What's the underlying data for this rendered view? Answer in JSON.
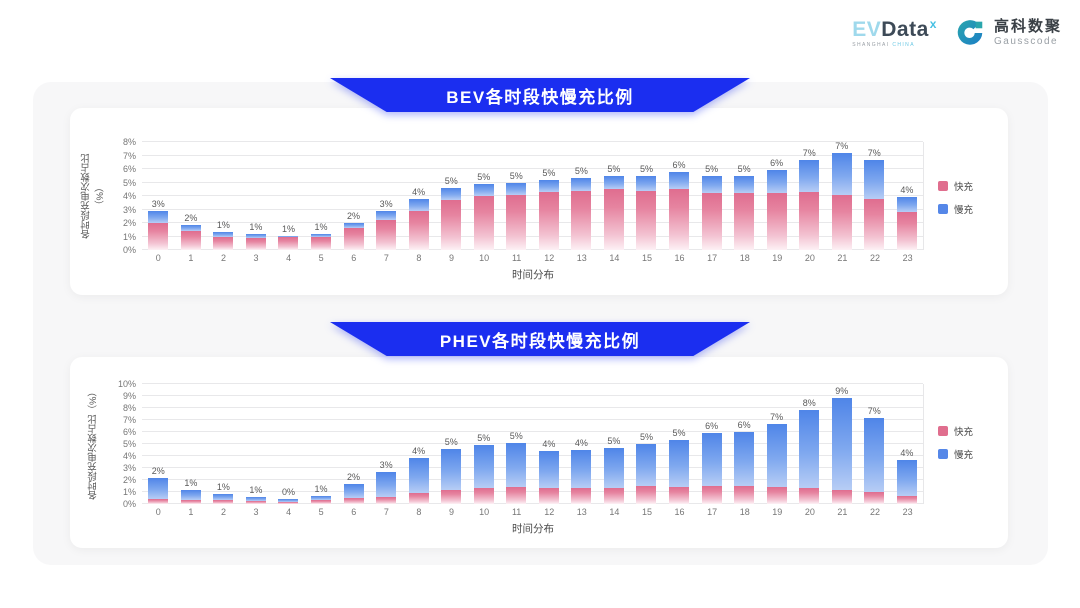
{
  "header": {
    "evdata": {
      "ev": "EV",
      "data": "Data",
      "sup": "x",
      "sub1": "SHANGHAI",
      "sub2": "CHINA"
    },
    "gausscode": {
      "cn": "高科数聚",
      "en": "Gausscode"
    }
  },
  "colors": {
    "banner_blue": "#1B2EF0",
    "fast_pink": "#E06E8E",
    "slow_blue": "#5587E8",
    "panel_bg": "#F7F7F8",
    "card_bg": "#FFFFFF"
  },
  "chart_data": [
    {
      "type": "bar",
      "stacked": true,
      "title": "BEV各时段快慢充比例",
      "xlabel": "时间分布",
      "ylabel": "各时段充电次数占比（%）",
      "ylim": [
        0,
        8
      ],
      "ytick_step": 1,
      "ytick_suffix": "%",
      "grid": true,
      "legend_position": "right",
      "categories": [
        "0",
        "1",
        "2",
        "3",
        "4",
        "5",
        "6",
        "7",
        "8",
        "9",
        "10",
        "11",
        "12",
        "13",
        "14",
        "15",
        "16",
        "17",
        "18",
        "19",
        "20",
        "21",
        "22",
        "23"
      ],
      "series": [
        {
          "name": "快充",
          "color": "#E06E8E",
          "values": [
            2.0,
            1.4,
            1.0,
            0.9,
            0.95,
            1.0,
            1.6,
            2.2,
            2.9,
            3.7,
            4.0,
            4.1,
            4.3,
            4.4,
            4.5,
            4.4,
            4.5,
            4.2,
            4.2,
            4.2,
            4.3,
            4.1,
            3.8,
            2.8
          ]
        },
        {
          "name": "慢充",
          "color": "#5587E8",
          "values": [
            0.9,
            0.45,
            0.3,
            0.25,
            0.1,
            0.2,
            0.4,
            0.7,
            0.9,
            0.9,
            0.9,
            0.9,
            0.9,
            0.9,
            1.0,
            1.1,
            1.3,
            1.3,
            1.3,
            1.7,
            2.4,
            3.1,
            2.9,
            1.1
          ]
        }
      ],
      "total_labels": [
        "3%",
        "2%",
        "1%",
        "1%",
        "1%",
        "1%",
        "2%",
        "3%",
        "4%",
        "5%",
        "5%",
        "5%",
        "5%",
        "5%",
        "5%",
        "5%",
        "6%",
        "5%",
        "5%",
        "6%",
        "7%",
        "7%",
        "7%",
        "4%"
      ]
    },
    {
      "type": "bar",
      "stacked": true,
      "title": "PHEV各时段快慢充比例",
      "xlabel": "时间分布",
      "ylabel": "各时段充电次数占比（%）",
      "ylim": [
        0,
        10
      ],
      "ytick_step": 1,
      "ytick_suffix": "%",
      "grid": true,
      "legend_position": "right",
      "categories": [
        "0",
        "1",
        "2",
        "3",
        "4",
        "5",
        "6",
        "7",
        "8",
        "9",
        "10",
        "11",
        "12",
        "13",
        "14",
        "15",
        "16",
        "17",
        "18",
        "19",
        "20",
        "21",
        "22",
        "23"
      ],
      "series": [
        {
          "name": "快充",
          "color": "#E06E8E",
          "values": [
            0.4,
            0.35,
            0.3,
            0.25,
            0.2,
            0.3,
            0.5,
            0.6,
            0.9,
            1.2,
            1.3,
            1.4,
            1.3,
            1.3,
            1.3,
            1.5,
            1.4,
            1.5,
            1.5,
            1.4,
            1.3,
            1.2,
            1.0,
            0.7
          ]
        },
        {
          "name": "慢充",
          "color": "#5587E8",
          "values": [
            1.8,
            0.85,
            0.5,
            0.35,
            0.25,
            0.4,
            1.2,
            2.1,
            2.9,
            3.4,
            3.6,
            3.7,
            3.1,
            3.2,
            3.4,
            3.5,
            3.9,
            4.4,
            4.5,
            5.3,
            6.5,
            7.6,
            6.2,
            3.0
          ]
        }
      ],
      "total_labels": [
        "2%",
        "1%",
        "1%",
        "1%",
        "0%",
        "1%",
        "2%",
        "3%",
        "4%",
        "5%",
        "5%",
        "5%",
        "4%",
        "4%",
        "5%",
        "5%",
        "5%",
        "6%",
        "6%",
        "7%",
        "8%",
        "9%",
        "7%",
        "4%"
      ]
    }
  ]
}
